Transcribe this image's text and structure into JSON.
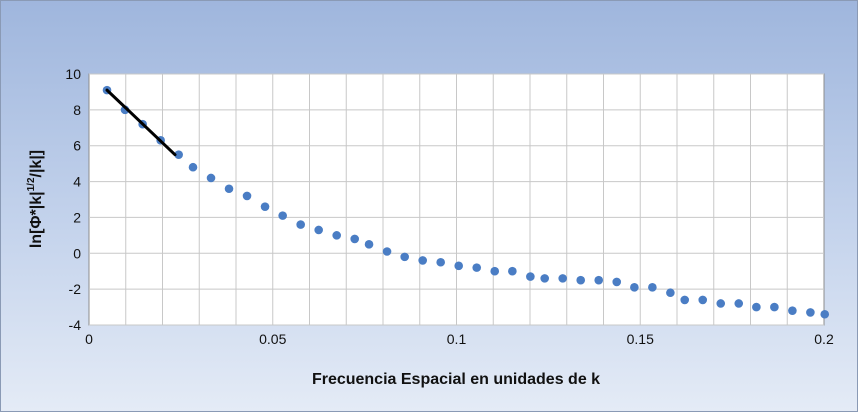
{
  "chart_data": {
    "type": "scatter",
    "title": "",
    "xlabel": "Frecuencia Espacial en unidades de k",
    "ylabel": {
      "prefix": "ln[Φ*|k|",
      "sup": "1/2",
      "suffix": "/|k|]"
    },
    "xlim": [
      0,
      0.2
    ],
    "ylim": [
      -4,
      10
    ],
    "x_ticks": [
      "0",
      "0.05",
      "0.1",
      "0.15",
      "0.2"
    ],
    "y_ticks": [
      "-4",
      "-2",
      "0",
      "2",
      "4",
      "6",
      "8",
      "10"
    ],
    "grid": true,
    "legend": "none",
    "colors": {
      "points": "#4a7dc4",
      "fit_line": "#000000",
      "grid": "#c8c8c8",
      "plot_bg": "#ffffff"
    },
    "series": [
      {
        "x": [
          0.0049,
          0.0098,
          0.0146,
          0.0195,
          0.0244,
          0.0283,
          0.0332,
          0.0381,
          0.043,
          0.0479,
          0.0527,
          0.0576,
          0.0625,
          0.0674,
          0.0723,
          0.0762,
          0.0811,
          0.0859,
          0.0908,
          0.0957,
          0.1006,
          0.1055,
          0.1104,
          0.1152,
          0.1201,
          0.124,
          0.1289,
          0.1338,
          0.1387,
          0.1436,
          0.1484,
          0.1533,
          0.1582,
          0.1621,
          0.167,
          0.1719,
          0.1768,
          0.1816,
          0.1865,
          0.1914,
          0.1963,
          0.2002
        ],
        "y": [
          9.1,
          8.0,
          7.2,
          6.3,
          5.5,
          4.8,
          4.2,
          3.6,
          3.2,
          2.6,
          2.1,
          1.6,
          1.3,
          1.0,
          0.8,
          0.5,
          0.1,
          -0.2,
          -0.4,
          -0.5,
          -0.7,
          -0.8,
          -1.0,
          -1.0,
          -1.3,
          -1.4,
          -1.4,
          -1.5,
          -1.5,
          -1.6,
          -1.9,
          -1.9,
          -2.2,
          -2.6,
          -2.6,
          -2.8,
          -2.8,
          -3.0,
          -3.0,
          -3.2,
          -3.3,
          -3.4
        ]
      },
      {
        "type": "line",
        "x": [
          0.0049,
          0.0234
        ],
        "y": [
          9.1,
          5.5
        ]
      }
    ]
  }
}
